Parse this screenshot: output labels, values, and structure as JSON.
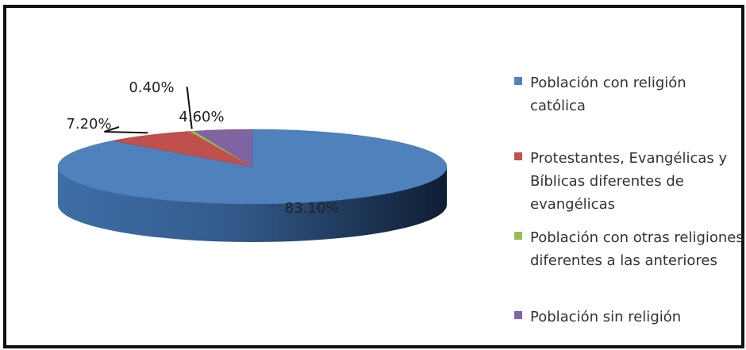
{
  "chart_data": {
    "type": "pie",
    "categories": [
      "Población con religión católica",
      "Protestantes, Evangélicas y Bíblicas diferentes de evangélicas",
      "Población con otras religiones diferentes a las anteriores",
      "Población sin religión"
    ],
    "values": [
      83.1,
      7.2,
      0.4,
      4.6
    ],
    "data_labels": [
      "83.10%",
      "7.20%",
      "0.40%",
      "4.60%"
    ],
    "colors": [
      "#4F81BD",
      "#C0504D",
      "#9BBB59",
      "#8064A2"
    ],
    "style": "3d",
    "legend": "right",
    "title": ""
  }
}
